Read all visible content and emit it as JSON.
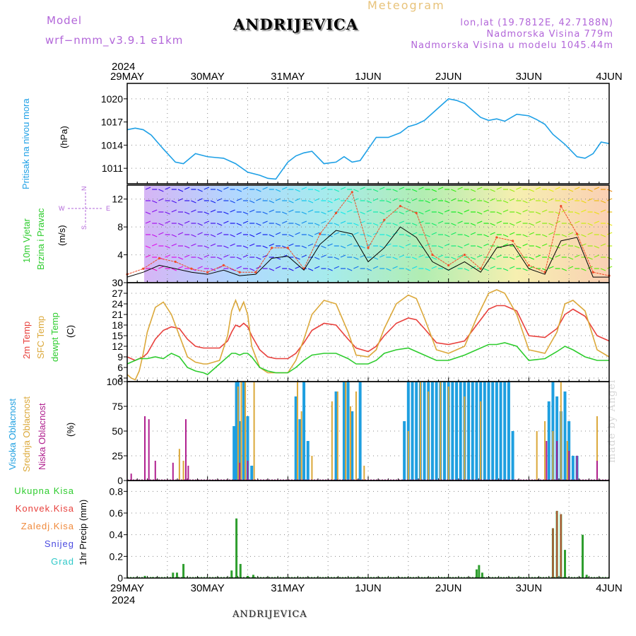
{
  "header": {
    "model_label": "Model",
    "model_name": "wrf−nmm_v3.9.1  e1km",
    "station_title": "ANDRIJEVICA",
    "meteogram_label": "Meteogram",
    "lonlat": "lon,lat (19.7812E, 42.7188N)",
    "altitude": "Nadmorska Visina 779m",
    "model_altitude": "Nadmorska Visina u modelu 1045.44m"
  },
  "footer": {
    "station_title": "ANDRIJEVICA",
    "credit": "made by Angel"
  },
  "time_axis": {
    "year_top": "2024",
    "year_bottom": "2024",
    "day_labels": [
      "29MAY",
      "30MAY",
      "31MAY",
      "1JUN",
      "2JUN",
      "3JUN",
      "4JUN"
    ]
  },
  "panel_labels": {
    "pressure": {
      "name": "Pritisak na nivou mora",
      "unit": "(hPa)"
    },
    "wind": {
      "name_1": "10m Vjetar",
      "name_2": "Brzina i Pravac",
      "unit": "(m/s)",
      "compass_n": "N",
      "compass_s": "S",
      "compass_e": "E",
      "compass_w": "W"
    },
    "temperature": {
      "name_1": "2m Temp",
      "name_2": "SFC Temp",
      "name_3": "dewpt Temp",
      "unit": "(C)"
    },
    "clouds": {
      "name_1": "Visoka Oblacnost",
      "name_2": "Srednja Oblacnost",
      "name_3": "Niska Oblacnost",
      "unit": "(%)"
    },
    "precip": {
      "legend": [
        "Ukupna Kisa",
        "Konvek.Kisa",
        "Zaledj.Kisa",
        "Snijeg",
        "Grad"
      ],
      "unit": "1hr Precip (mm)"
    }
  },
  "colors": {
    "pressure_line": "#1ea0e6",
    "temp_2m": "#e8403c",
    "temp_sfc": "#dba83a",
    "temp_dew": "#2ecc2e",
    "cloud_high": "#1e9fe0",
    "cloud_mid": "#dba83a",
    "cloud_low": "#b0208f",
    "precip_total": "#2e9e2e",
    "precip_conv": "#e8403c",
    "precip_frz": "#f08a3c",
    "snow": "#4a4ae0",
    "hail": "#2ec8c8",
    "gust_line": "#f04c28",
    "wind_speed_line": "#000000"
  },
  "chart_data": [
    {
      "type": "line",
      "name": "pressure",
      "x_unit": "days since 29MAY 00UTC",
      "ylim": [
        1009,
        1022
      ],
      "yticks": [
        1011,
        1014,
        1017,
        1020
      ],
      "ytick_labels": [
        "1011",
        "1014",
        "1017",
        "1020"
      ],
      "grid": true,
      "series": [
        {
          "x": [
            0,
            0.1,
            0.2,
            0.3,
            0.45,
            0.6,
            0.7,
            0.85,
            1,
            1.1,
            1.2,
            1.35,
            1.5,
            1.65,
            1.75,
            1.85,
            2,
            2.1,
            2.2,
            2.3,
            2.45,
            2.6,
            2.7,
            2.8,
            2.9,
            3,
            3.1,
            3.25,
            3.4,
            3.5,
            3.6,
            3.7,
            3.85,
            4,
            4.1,
            4.2,
            4.3,
            4.4,
            4.5,
            4.6,
            4.7,
            4.85,
            5,
            5.1,
            5.2,
            5.3,
            5.45,
            5.6,
            5.7,
            5.8,
            5.9,
            6
          ],
          "y": [
            1016.0,
            1016.2,
            1016.0,
            1015.3,
            1013.5,
            1011.8,
            1011.6,
            1012.9,
            1012.5,
            1012.4,
            1012.3,
            1011.6,
            1010.5,
            1010.1,
            1009.7,
            1009.6,
            1011.8,
            1012.6,
            1013.0,
            1013.2,
            1011.6,
            1011.8,
            1012.5,
            1011.8,
            1012.0,
            1013.5,
            1015.0,
            1015.0,
            1015.6,
            1016.4,
            1016.7,
            1017.2,
            1018.6,
            1020.0,
            1019.8,
            1019.4,
            1018.5,
            1017.6,
            1017.2,
            1017.4,
            1017.1,
            1018.0,
            1017.8,
            1017.3,
            1016.7,
            1015.4,
            1014.1,
            1012.5,
            1012.3,
            1012.9,
            1014.4,
            1014.2
          ]
        }
      ]
    },
    {
      "type": "line",
      "name": "wind",
      "x_unit": "days since 29MAY 00UTC",
      "ylim": [
        0,
        14
      ],
      "yticks": [
        0,
        4,
        8,
        12
      ],
      "ytick_labels": [
        "0",
        "4",
        "8",
        "12"
      ],
      "grid": true,
      "series": [
        {
          "name": "gust",
          "x": [
            0,
            0.2,
            0.4,
            0.6,
            0.8,
            1,
            1.2,
            1.4,
            1.6,
            1.8,
            2,
            2.2,
            2.4,
            2.6,
            2.8,
            3,
            3.2,
            3.4,
            3.6,
            3.8,
            4,
            4.2,
            4.4,
            4.6,
            4.8,
            5,
            5.2,
            5.4,
            5.6,
            5.8,
            6
          ],
          "y": [
            1.2,
            2,
            3.5,
            3,
            2,
            1.5,
            2.5,
            1.5,
            1.5,
            5,
            5,
            2,
            7,
            10,
            13,
            5,
            9,
            11,
            10,
            4,
            2.5,
            4,
            2,
            6.5,
            6,
            2.5,
            1.5,
            11,
            7,
            1.5,
            1
          ]
        },
        {
          "name": "speed",
          "x": [
            0,
            0.2,
            0.4,
            0.6,
            0.8,
            1,
            1.2,
            1.4,
            1.6,
            1.8,
            2,
            2.2,
            2.4,
            2.6,
            2.8,
            3,
            3.2,
            3.4,
            3.6,
            3.8,
            4,
            4.2,
            4.4,
            4.6,
            4.8,
            5,
            5.2,
            5.4,
            5.6,
            5.8,
            6
          ],
          "y": [
            0.8,
            1.5,
            2.5,
            2,
            1.5,
            1.2,
            1.8,
            1,
            1.2,
            3.5,
            3.8,
            1.8,
            5.5,
            7.5,
            7,
            3,
            5,
            8,
            6.5,
            3,
            1.8,
            3,
            1.5,
            5,
            5.5,
            2,
            1.2,
            6,
            6.5,
            0.8,
            0.8
          ]
        }
      ]
    },
    {
      "type": "line",
      "name": "temperature",
      "x_unit": "days since 29MAY 00UTC",
      "ylim": [
        2,
        30
      ],
      "yticks": [
        3,
        6,
        9,
        12,
        15,
        18,
        21,
        24,
        27,
        30
      ],
      "ytick_labels": [
        "3",
        "6",
        "9",
        "12",
        "15",
        "18",
        "21",
        "24",
        "27",
        "30"
      ],
      "grid": true,
      "series": [
        {
          "name": "2m",
          "x": [
            0,
            0.05,
            0.1,
            0.15,
            0.2,
            0.25,
            0.35,
            0.45,
            0.55,
            0.65,
            0.75,
            0.85,
            0.95,
            1,
            1.15,
            1.25,
            1.3,
            1.35,
            1.4,
            1.45,
            1.5,
            1.55,
            1.65,
            1.75,
            1.85,
            2,
            2.1,
            2.2,
            2.3,
            2.45,
            2.6,
            2.75,
            2.85,
            3,
            3.1,
            3.2,
            3.35,
            3.5,
            3.6,
            3.7,
            3.85,
            4,
            4.2,
            4.35,
            4.5,
            4.6,
            4.7,
            4.85,
            5,
            5.2,
            5.35,
            5.45,
            5.55,
            5.7,
            5.85,
            6
          ],
          "y": [
            9,
            8.5,
            8,
            8.5,
            9,
            10,
            14,
            16.5,
            17.5,
            17,
            14,
            12,
            11.5,
            11.5,
            11.5,
            13.5,
            16,
            18,
            17.5,
            18.5,
            17.5,
            15,
            11,
            9,
            8.5,
            8.5,
            10,
            13,
            16.5,
            18.5,
            18,
            14,
            11.5,
            10.5,
            12,
            15,
            18.5,
            20,
            19.5,
            17,
            13,
            12.5,
            13.5,
            18,
            22.5,
            23.5,
            23.5,
            22,
            15,
            14.5,
            17,
            21,
            22.5,
            20.5,
            15,
            13.5
          ]
        },
        {
          "name": "sfc",
          "x": [
            0,
            0.05,
            0.1,
            0.15,
            0.2,
            0.25,
            0.35,
            0.45,
            0.55,
            0.65,
            0.75,
            0.85,
            0.95,
            1,
            1.15,
            1.25,
            1.3,
            1.35,
            1.4,
            1.45,
            1.5,
            1.55,
            1.65,
            1.75,
            1.85,
            2,
            2.1,
            2.2,
            2.3,
            2.45,
            2.6,
            2.75,
            2.85,
            3,
            3.1,
            3.2,
            3.35,
            3.5,
            3.6,
            3.7,
            3.85,
            4,
            4.2,
            4.35,
            4.5,
            4.6,
            4.7,
            4.85,
            5,
            5.2,
            5.35,
            5.45,
            5.55,
            5.7,
            5.85,
            6
          ],
          "y": [
            4,
            3,
            2.5,
            5,
            10,
            16,
            23,
            24.5,
            21,
            15,
            9,
            7.5,
            7,
            7,
            8,
            15,
            22,
            25,
            22,
            24.5,
            21,
            12,
            6,
            4.5,
            4.5,
            4.5,
            8,
            14,
            21,
            25,
            24,
            16,
            9.5,
            9,
            11,
            17,
            24,
            26.5,
            25.5,
            20,
            11,
            10,
            12,
            20,
            27,
            28,
            27,
            21,
            11,
            10,
            16,
            24,
            25,
            22,
            11,
            9
          ]
        },
        {
          "name": "dew",
          "x": [
            0,
            0.05,
            0.1,
            0.15,
            0.2,
            0.25,
            0.35,
            0.45,
            0.55,
            0.65,
            0.75,
            0.85,
            0.95,
            1,
            1.15,
            1.25,
            1.3,
            1.35,
            1.4,
            1.45,
            1.5,
            1.55,
            1.65,
            1.75,
            1.85,
            2,
            2.1,
            2.2,
            2.3,
            2.45,
            2.6,
            2.75,
            2.85,
            3,
            3.1,
            3.2,
            3.35,
            3.5,
            3.6,
            3.7,
            3.85,
            4,
            4.2,
            4.35,
            4.5,
            4.6,
            4.7,
            4.85,
            5,
            5.2,
            5.35,
            5.45,
            5.55,
            5.7,
            5.85,
            6
          ],
          "y": [
            7,
            7.5,
            8,
            8.5,
            8.5,
            8.5,
            9,
            8.5,
            10,
            9,
            6,
            5,
            4.5,
            4,
            7,
            9,
            10,
            10,
            9.5,
            10,
            10,
            9,
            6,
            5,
            4.5,
            4.5,
            6,
            8,
            9.5,
            10,
            10,
            8.5,
            7,
            7,
            8,
            10,
            11,
            11.5,
            10.5,
            9.5,
            8,
            8,
            9.5,
            11,
            12.5,
            12.5,
            13,
            12,
            8,
            8.5,
            10.5,
            12,
            11,
            9,
            8,
            8
          ]
        }
      ]
    },
    {
      "type": "bar",
      "name": "clouds",
      "x_unit": "days since 29MAY 00UTC",
      "ylim": [
        0,
        100
      ],
      "yticks": [
        0,
        25,
        50,
        75,
        100
      ],
      "ytick_labels": [
        "0",
        "25",
        "50",
        "75",
        "100"
      ],
      "grid": true,
      "series": [
        {
          "name": "high",
          "x": [
            1.33,
            1.36,
            1.38,
            1.41,
            1.45,
            1.5,
            1.55,
            2.1,
            2.15,
            2.2,
            2.25,
            2.6,
            2.7,
            2.75,
            2.8,
            2.9,
            3.45,
            3.5,
            3.55,
            3.6,
            3.65,
            3.7,
            3.75,
            3.8,
            3.85,
            3.9,
            3.95,
            4,
            4.05,
            4.1,
            4.15,
            4.2,
            4.25,
            4.3,
            4.35,
            4.4,
            4.45,
            4.5,
            4.55,
            4.6,
            4.65,
            4.7,
            4.75,
            4.8,
            5.25,
            5.3,
            5.35,
            5.4,
            5.45,
            5.5,
            5.55,
            5.6
          ],
          "y": [
            55,
            100,
            100,
            60,
            100,
            65,
            15,
            85,
            62,
            100,
            40,
            90,
            100,
            100,
            70,
            100,
            60,
            100,
            100,
            100,
            100,
            100,
            100,
            100,
            100,
            100,
            100,
            100,
            100,
            100,
            100,
            100,
            100,
            100,
            100,
            100,
            100,
            100,
            100,
            100,
            100,
            100,
            100,
            50,
            80,
            100,
            85,
            70,
            90,
            60,
            25,
            25
          ]
        },
        {
          "name": "mid",
          "x": [
            0.65,
            0.7,
            1.38,
            1.42,
            1.47,
            1.58,
            2.12,
            2.17,
            2.3,
            2.55,
            2.62,
            2.72,
            2.78,
            2.85,
            2.95,
            3.5,
            3.65,
            3.75,
            3.9,
            4,
            4.2,
            4.4,
            5.1,
            5.2,
            5.3,
            5.4,
            5.48,
            5.85
          ],
          "y": [
            32,
            20,
            95,
            100,
            100,
            100,
            100,
            70,
            25,
            80,
            90,
            100,
            75,
            90,
            15,
            50,
            100,
            90,
            100,
            95,
            85,
            80,
            50,
            60,
            50,
            100,
            40,
            65
          ]
        },
        {
          "name": "low",
          "x": [
            0.05,
            0.22,
            0.27,
            0.35,
            0.57,
            0.73,
            0.76,
            1.4,
            1.5,
            5.22,
            5.35,
            5.5,
            5.6,
            5.85
          ],
          "y": [
            7,
            65,
            62,
            20,
            18,
            62,
            15,
            18,
            20,
            40,
            40,
            30,
            25,
            20
          ]
        }
      ]
    },
    {
      "type": "bar",
      "name": "precip",
      "x_unit": "days since 29MAY 00UTC",
      "ylim": [
        0,
        0.9
      ],
      "yticks": [
        0,
        0.2,
        0.4,
        0.6,
        0.8
      ],
      "ytick_labels": [
        "0",
        "0.2",
        "0.4",
        "0.6",
        "0.8"
      ],
      "grid": true,
      "series": [
        {
          "name": "total",
          "x": [
            0.22,
            0.32,
            0.57,
            0.62,
            0.7,
            1.3,
            1.36,
            1.41,
            1.5,
            1.57,
            4.35,
            4.38,
            4.42,
            5.3,
            5.35,
            5.4,
            5.45,
            5.67,
            5.72
          ],
          "y": [
            0.02,
            0.01,
            0.05,
            0.05,
            0.13,
            0.07,
            0.55,
            0.13,
            0.02,
            0.03,
            0.08,
            0.12,
            0.05,
            0.46,
            0.62,
            0.59,
            0.26,
            0.4,
            0.03
          ]
        },
        {
          "name": "conv",
          "x": [
            5.3,
            5.35,
            5.4
          ],
          "y": [
            0.46,
            0.62,
            0.59
          ]
        }
      ]
    }
  ]
}
